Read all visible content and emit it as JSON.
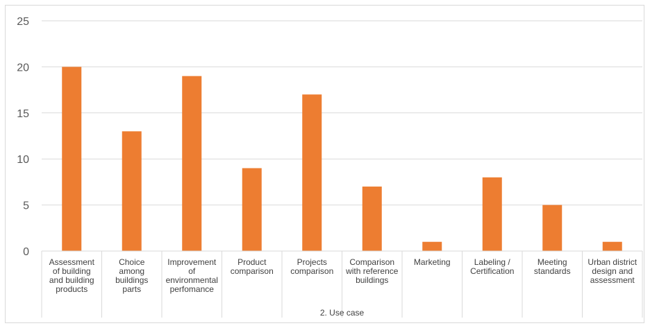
{
  "chart_data": {
    "type": "bar",
    "title": "",
    "xlabel": "2. Use case",
    "ylabel": "",
    "ylim": [
      0,
      25
    ],
    "yticks": [
      0,
      5,
      10,
      15,
      20,
      25
    ],
    "grid": true,
    "legend": "none",
    "bar_color": "#ed7d31",
    "categories": [
      "Assessment of building and building products",
      "Choice among buildings parts",
      "Improvement of environmental perfomance",
      "Product comparison",
      "Projects comparison",
      "Comparison with reference buildings",
      "Marketing",
      "Labeling / Certification",
      "Meeting standards",
      "Urban district design and assessment"
    ],
    "category_lines": [
      [
        "Assessment",
        "of building",
        "and building",
        "products"
      ],
      [
        "Choice",
        "among",
        "buildings",
        "parts"
      ],
      [
        "Improvement",
        "of",
        "environmental",
        "perfomance"
      ],
      [
        "Product",
        "comparison"
      ],
      [
        "Projects",
        "comparison"
      ],
      [
        "Comparison",
        "with reference",
        "buildings"
      ],
      [
        "Marketing"
      ],
      [
        "Labeling /",
        "Certification"
      ],
      [
        "Meeting",
        "standards"
      ],
      [
        "Urban district",
        "design and",
        "assessment"
      ]
    ],
    "values": [
      20,
      13,
      19,
      9,
      17,
      7,
      1,
      8,
      5,
      1
    ]
  }
}
